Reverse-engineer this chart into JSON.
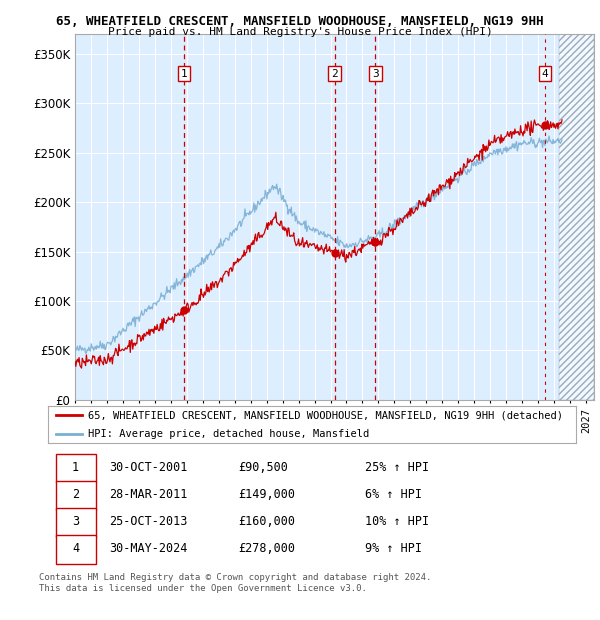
{
  "title1": "65, WHEATFIELD CRESCENT, MANSFIELD WOODHOUSE, MANSFIELD, NG19 9HH",
  "title2": "Price paid vs. HM Land Registry's House Price Index (HPI)",
  "xlim_start": 1995.0,
  "xlim_end": 2027.5,
  "ylim": [
    0,
    370000
  ],
  "yticks": [
    0,
    50000,
    100000,
    150000,
    200000,
    250000,
    300000,
    350000
  ],
  "ytick_labels": [
    "£0",
    "£50K",
    "£100K",
    "£150K",
    "£200K",
    "£250K",
    "£300K",
    "£350K"
  ],
  "sale_dates": [
    2001.83,
    2011.25,
    2013.81,
    2024.41
  ],
  "sale_prices": [
    90500,
    149000,
    160000,
    278000
  ],
  "sale_labels": [
    "1",
    "2",
    "3",
    "4"
  ],
  "hpi_color": "#7bafd4",
  "price_color": "#cc0000",
  "marker_color": "#cc0000",
  "vline_color": "#cc0000",
  "bg_color": "#ddeeff",
  "legend_label1": "65, WHEATFIELD CRESCENT, MANSFIELD WOODHOUSE, MANSFIELD, NG19 9HH (detached)",
  "legend_label2": "HPI: Average price, detached house, Mansfield",
  "table_data": [
    [
      "1",
      "30-OCT-2001",
      "£90,500",
      "25% ↑ HPI"
    ],
    [
      "2",
      "28-MAR-2011",
      "£149,000",
      "6% ↑ HPI"
    ],
    [
      "3",
      "25-OCT-2013",
      "£160,000",
      "10% ↑ HPI"
    ],
    [
      "4",
      "30-MAY-2024",
      "£278,000",
      "9% ↑ HPI"
    ]
  ],
  "footer": "Contains HM Land Registry data © Crown copyright and database right 2024.\nThis data is licensed under the Open Government Licence v3.0."
}
